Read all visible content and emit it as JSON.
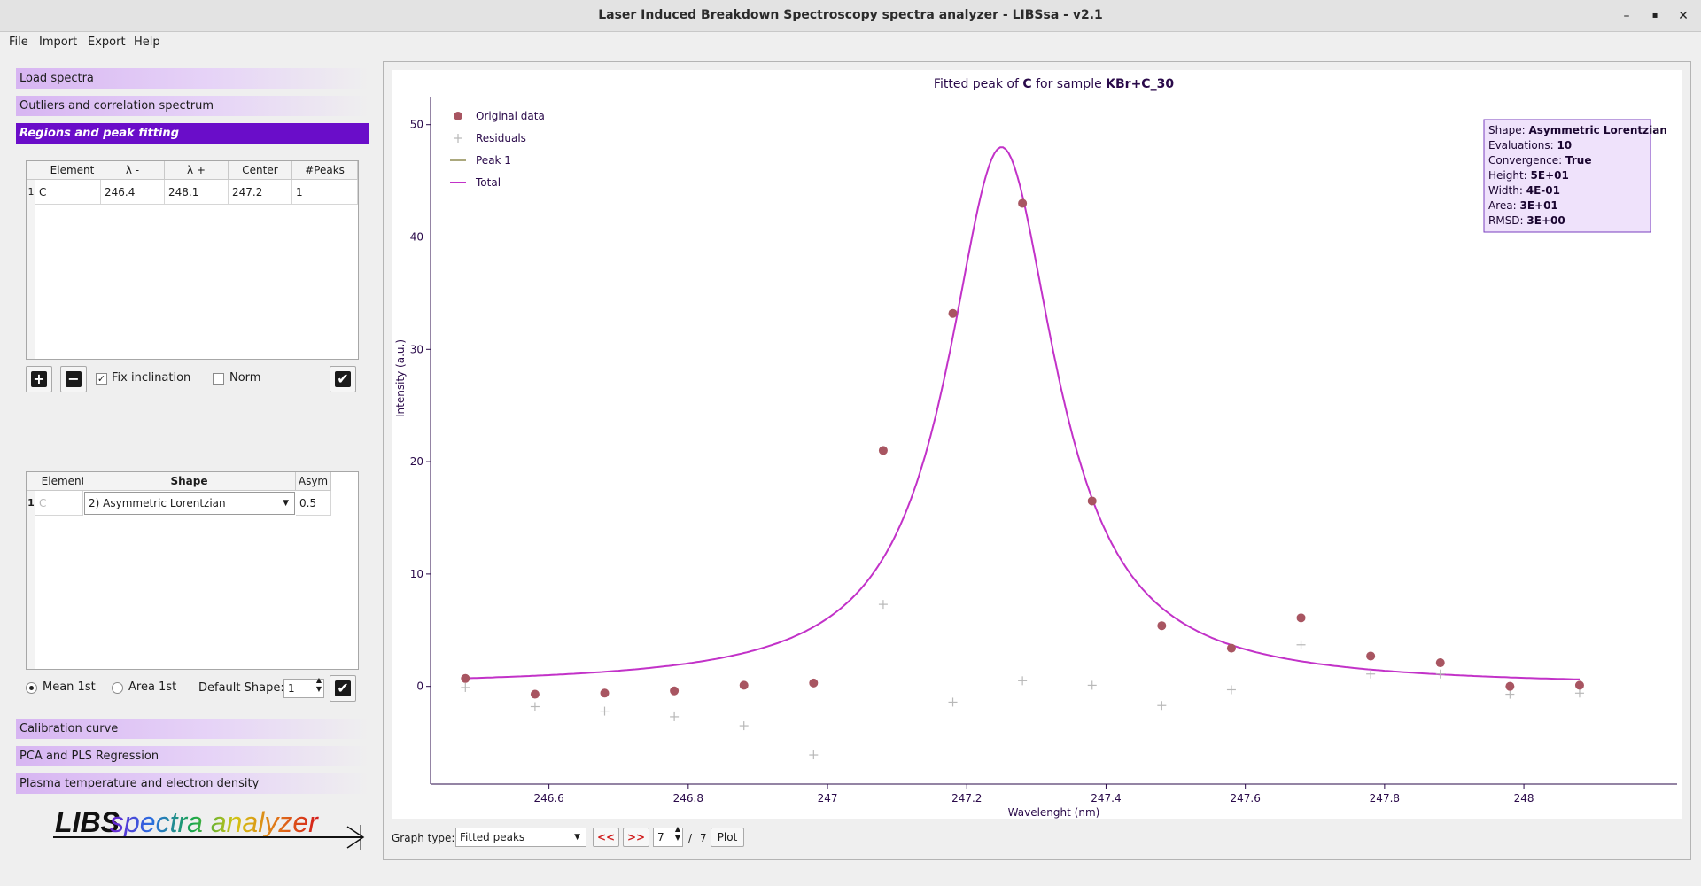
{
  "window": {
    "title": "Laser Induced Breakdown Spectroscopy spectra analyzer - LIBSsa - v2.1",
    "minimize": "–",
    "maximize": "▪",
    "close": "✕"
  },
  "menu": [
    "File",
    "Import",
    "Export",
    "Help"
  ],
  "sections": {
    "load": "Load spectra",
    "outliers": "Outliers and correlation spectrum",
    "regions": "Regions and peak fitting",
    "calibration": "Calibration curve",
    "pca": "PCA and PLS Regression",
    "plasma": "Plasma temperature and electron density"
  },
  "regions_table": {
    "headers": [
      "Element",
      "λ -",
      "λ +",
      "Center",
      "#Peaks"
    ],
    "rows": [
      {
        "num": "1",
        "element": "C",
        "lmin": "246.4",
        "lmax": "248.1",
        "center": "247.2",
        "peaks": "1"
      }
    ]
  },
  "region_controls": {
    "add": "+",
    "remove": "−",
    "fix_inclination": "Fix inclination",
    "norm": "Norm",
    "fix_checked_mark": "✓",
    "apply_mark": "✔"
  },
  "shape_table": {
    "headers": [
      "Element",
      "Shape",
      "Asym"
    ],
    "rows": [
      {
        "num": "1",
        "element": "C",
        "shape": "2) Asymmetric Lorentzian",
        "asym": "0.5"
      }
    ]
  },
  "shape_controls": {
    "mean_1st": "Mean 1st",
    "area_1st": "Area 1st",
    "default_shape_label": "Default Shape:",
    "default_shape_value": "1",
    "apply_mark": "✔"
  },
  "graph_controls": {
    "graph_type_label": "Graph type:",
    "graph_type_value": "Fitted peaks",
    "prev": "<<",
    "next": ">>",
    "page": "7",
    "separator": "/",
    "total": "7",
    "plot": "Plot"
  },
  "logo": {
    "part1": "LIBS",
    "part2": "spectra analyzer"
  },
  "chart_data": {
    "type": "scatter",
    "title_prefix": "Fitted peak of ",
    "title_element": "C",
    "title_mid": " for sample ",
    "title_sample": "KBr+C_30",
    "xlabel": "Wavelenght (nm)",
    "ylabel": "Intensity (a.u.)",
    "xlim": [
      246.43,
      248.22
    ],
    "ylim": [
      -8.7,
      52.5
    ],
    "xticks": [
      246.6,
      246.8,
      247,
      247.2,
      247.4,
      247.6,
      247.8,
      248
    ],
    "xtick_labels": [
      "246.6",
      "246.8",
      "247",
      "247.2",
      "247.4",
      "247.6",
      "247.8",
      "248"
    ],
    "yticks": [
      0,
      10,
      20,
      30,
      40,
      50
    ],
    "ytick_labels": [
      "0",
      "10",
      "20",
      "30",
      "40",
      "50"
    ],
    "colors": {
      "original": "#a85561",
      "residuals": "#b8b8b8",
      "peak1": "#8f8b52",
      "total": "#c232c8"
    },
    "legend": [
      "Original data",
      "Residuals",
      "Peak 1",
      "Total"
    ],
    "series": [
      {
        "name": "Original data",
        "x": [
          246.48,
          246.58,
          246.68,
          246.78,
          246.88,
          246.98,
          247.08,
          247.18,
          247.28,
          247.38,
          247.48,
          247.58,
          247.68,
          247.78,
          247.88,
          247.98,
          248.08
        ],
        "y": [
          0.7,
          -0.7,
          -0.6,
          -0.4,
          0.1,
          0.3,
          21.0,
          33.2,
          43.0,
          16.5,
          5.4,
          3.4,
          6.1,
          2.7,
          2.1,
          0.0,
          0.1
        ]
      },
      {
        "name": "Residuals",
        "x": [
          246.48,
          246.58,
          246.68,
          246.78,
          246.88,
          246.98,
          247.08,
          247.18,
          247.28,
          247.38,
          247.48,
          247.58,
          247.68,
          247.78,
          247.88,
          247.98,
          248.08
        ],
        "y": [
          -0.1,
          -1.8,
          -2.2,
          -2.7,
          -3.5,
          -6.1,
          7.3,
          -1.4,
          0.5,
          0.1,
          -1.7,
          -0.3,
          3.7,
          1.1,
          1.1,
          -0.7,
          -0.6
        ]
      }
    ],
    "fit": {
      "center": 247.25,
      "height": 48.0,
      "hwhm": 0.095,
      "x_start": 246.48,
      "x_end": 248.08
    },
    "info_box": [
      {
        "label": "Shape: ",
        "value": "Asymmetric Lorentzian"
      },
      {
        "label": "Evaluations: ",
        "value": "10"
      },
      {
        "label": "Convergence: ",
        "value": "True"
      },
      {
        "label": "Height: ",
        "value": "5E+01"
      },
      {
        "label": "Width: ",
        "value": "4E-01"
      },
      {
        "label": "Area: ",
        "value": "3E+01"
      },
      {
        "label": "RMSD: ",
        "value": "3E+00"
      }
    ]
  }
}
